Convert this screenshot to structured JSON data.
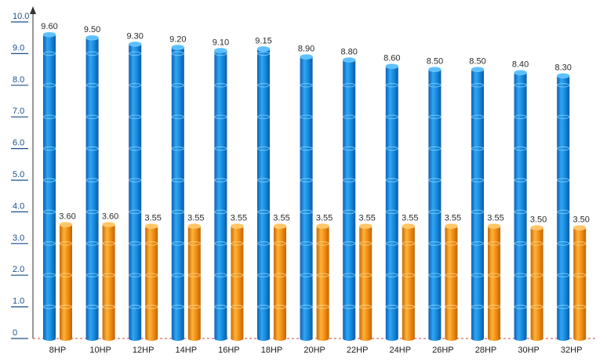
{
  "chart_data": {
    "type": "bar",
    "categories": [
      "8HP",
      "10HP",
      "12HP",
      "14HP",
      "16HP",
      "18HP",
      "20HP",
      "22HP",
      "24HP",
      "26HP",
      "28HP",
      "30HP",
      "32HP"
    ],
    "series": [
      {
        "values": [
          9.6,
          9.5,
          9.3,
          9.2,
          9.1,
          9.15,
          8.9,
          8.8,
          8.6,
          8.5,
          8.5,
          8.4,
          8.3
        ],
        "labels": [
          "9.60",
          "9.50",
          "9.30",
          "9.20",
          "9.10",
          "9.15",
          "8.90",
          "8.80",
          "8.60",
          "8.50",
          "8.50",
          "8.40",
          "8.30"
        ],
        "color": "#1a8fe0"
      },
      {
        "values": [
          3.6,
          3.6,
          3.55,
          3.55,
          3.55,
          3.55,
          3.55,
          3.55,
          3.55,
          3.55,
          3.55,
          3.5,
          3.5
        ],
        "labels": [
          "3.60",
          "3.60",
          "3.55",
          "3.55",
          "3.55",
          "3.55",
          "3.55",
          "3.55",
          "3.55",
          "3.55",
          "3.55",
          "3.50",
          "3.50"
        ],
        "color": "#f08c10"
      }
    ],
    "y_ticks": [
      {
        "value": 0,
        "label": "0"
      },
      {
        "value": 1,
        "label": "1.0"
      },
      {
        "value": 2,
        "label": "2.0"
      },
      {
        "value": 3,
        "label": "3.0"
      },
      {
        "value": 4,
        "label": "4.0"
      },
      {
        "value": 5,
        "label": "5.0"
      },
      {
        "value": 6,
        "label": "6.0"
      },
      {
        "value": 7,
        "label": "7.0"
      },
      {
        "value": 8,
        "label": "8.0"
      },
      {
        "value": 9,
        "label": "9.0"
      },
      {
        "value": 10,
        "label": "10.0"
      }
    ],
    "ylim": [
      0,
      10
    ],
    "grid": false,
    "legend": "none"
  }
}
